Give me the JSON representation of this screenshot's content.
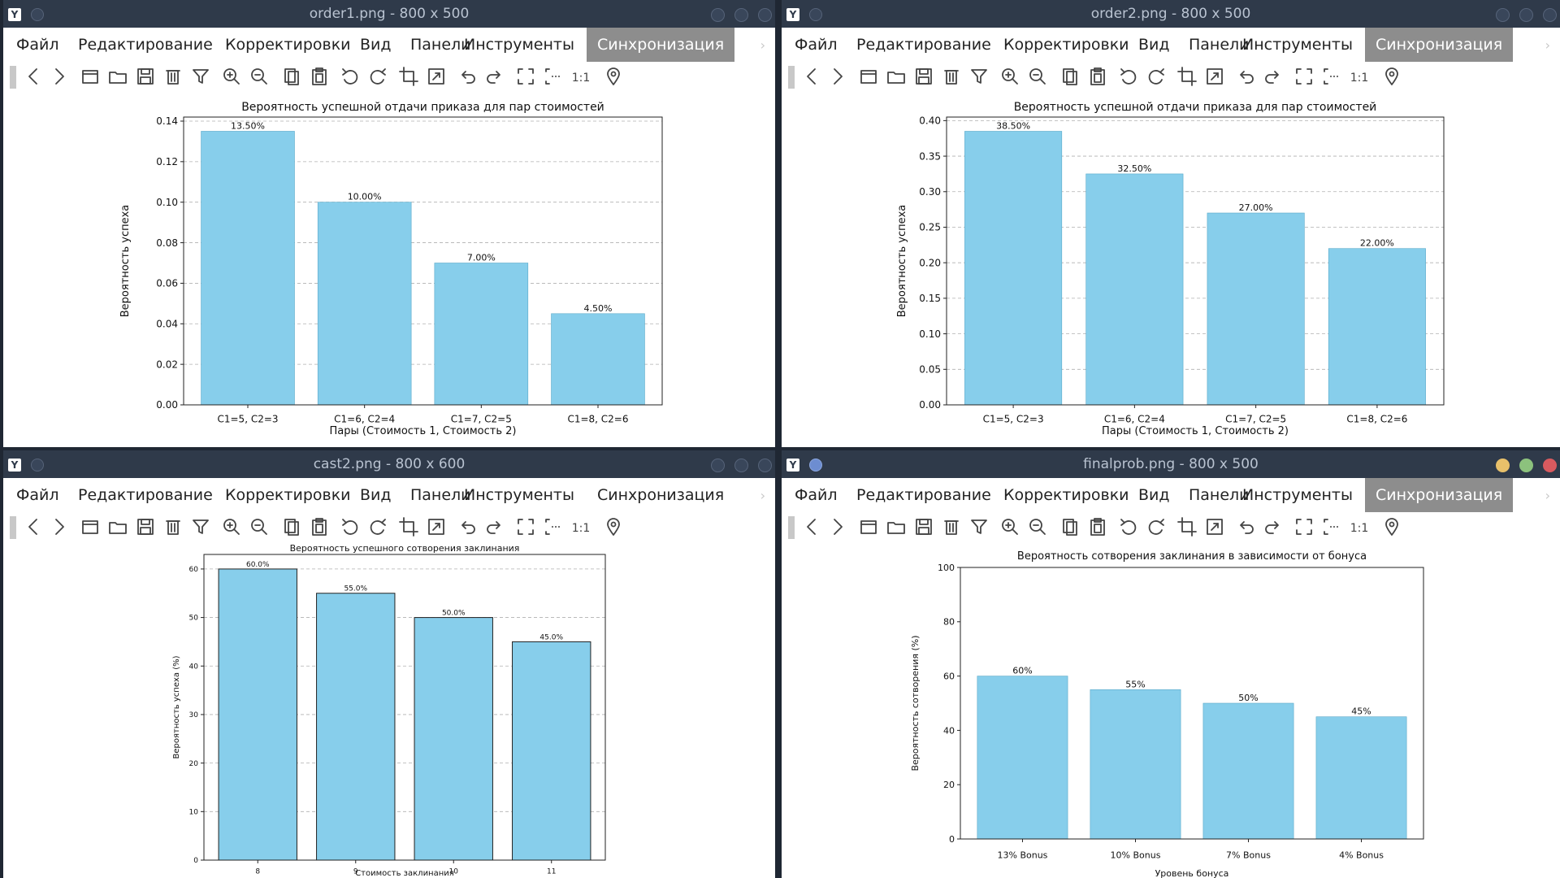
{
  "menu": [
    "Файл",
    "Редактирование",
    "Корректировки",
    "Вид",
    "Панели",
    "Инструменты",
    "Синхронизация"
  ],
  "colors": {
    "bar": "#87ceeb",
    "bar_edge": "#5aa9c9",
    "titlebar": "#2f3a4a",
    "menu_active": "#8d8d8d",
    "close": "#d85a5f",
    "minimize": "#e8c06a",
    "maximize": "#8cc27d"
  },
  "toolbar_icons": [
    "back-icon",
    "forward-icon",
    "open-icon",
    "folder-icon",
    "save-icon",
    "delete-icon",
    "filter-icon",
    "zoom-in-icon",
    "zoom-out-icon",
    "copy-icon",
    "paste-icon",
    "rotate-left-icon",
    "rotate-right-icon",
    "crop-icon",
    "resize-icon",
    "undo-icon",
    "redo-icon",
    "fit-icon",
    "fit-width-icon",
    "actual-size-icon",
    "location-icon"
  ],
  "windows": [
    {
      "title": "order1.png - 800 x 500",
      "active_menu": 6,
      "controls": "inactive",
      "chart_data": {
        "type": "bar",
        "title": "Вероятность успешной отдачи приказа для пар стоимостей",
        "xlabel": "Пары (Стоимость 1, Стоимость 2)",
        "ylabel": "Вероятность успеха",
        "categories": [
          "C1=5, C2=3",
          "C1=6, C2=4",
          "C1=7, C2=5",
          "C1=8, C2=6"
        ],
        "values": [
          0.135,
          0.1,
          0.07,
          0.045
        ],
        "value_labels": [
          "13.50%",
          "10.00%",
          "7.00%",
          "4.50%"
        ],
        "ylim": [
          0,
          0.142
        ],
        "yticks": [
          0,
          0.02,
          0.04,
          0.06,
          0.08,
          0.1,
          0.12,
          0.14
        ],
        "ytick_labels": [
          "0.00",
          "0.02",
          "0.04",
          "0.06",
          "0.08",
          "0.10",
          "0.12",
          "0.14"
        ],
        "grid": "y-dashed"
      }
    },
    {
      "title": "order2.png - 800 x 500",
      "active_menu": 6,
      "controls": "inactive",
      "chart_data": {
        "type": "bar",
        "title": "Вероятность успешной отдачи приказа для пар стоимостей",
        "xlabel": "Пары (Стоимость 1, Стоимость 2)",
        "ylabel": "Вероятность успеха",
        "categories": [
          "C1=5, C2=3",
          "C1=6, C2=4",
          "C1=7, C2=5",
          "C1=8, C2=6"
        ],
        "values": [
          0.385,
          0.325,
          0.27,
          0.22
        ],
        "value_labels": [
          "38.50%",
          "32.50%",
          "27.00%",
          "22.00%"
        ],
        "ylim": [
          0,
          0.405
        ],
        "yticks": [
          0,
          0.05,
          0.1,
          0.15,
          0.2,
          0.25,
          0.3,
          0.35,
          0.4
        ],
        "ytick_labels": [
          "0.00",
          "0.05",
          "0.10",
          "0.15",
          "0.20",
          "0.25",
          "0.30",
          "0.35",
          "0.40"
        ],
        "grid": "y-dashed"
      }
    },
    {
      "title": "cast2.png - 800 x 600",
      "active_menu": -1,
      "controls": "inactive",
      "chart_data": {
        "type": "bar",
        "title": "Вероятность успешного сотворения заклинания",
        "xlabel": "Стоимость заклинания",
        "ylabel": "Вероятность успеха (%)",
        "categories": [
          "8",
          "9",
          "10",
          "11"
        ],
        "values": [
          60,
          55,
          50,
          45
        ],
        "value_labels": [
          "60.0%",
          "55.0%",
          "50.0%",
          "45.0%"
        ],
        "ylim": [
          0,
          63
        ],
        "yticks": [
          0,
          10,
          20,
          30,
          40,
          50,
          60
        ],
        "ytick_labels": [
          "0",
          "10",
          "20",
          "30",
          "40",
          "50",
          "60"
        ],
        "grid": "y-dashed"
      }
    },
    {
      "title": "finalprob.png - 800 x 500",
      "active_menu": 6,
      "controls": "active",
      "chart_data": {
        "type": "bar",
        "title": "Вероятность сотворения заклинания в зависимости от бонуса",
        "xlabel": "Уровень бонуса",
        "ylabel": "Вероятность сотворения (%)",
        "categories": [
          "13% Bonus",
          "10% Bonus",
          "7% Bonus",
          "4% Bonus"
        ],
        "values": [
          60,
          55,
          50,
          45
        ],
        "value_labels": [
          "60%",
          "55%",
          "50%",
          "45%"
        ],
        "ylim": [
          0,
          100
        ],
        "yticks": [
          0,
          20,
          40,
          60,
          80,
          100
        ],
        "ytick_labels": [
          "0",
          "20",
          "40",
          "60",
          "80",
          "100"
        ],
        "grid": "none"
      }
    }
  ]
}
